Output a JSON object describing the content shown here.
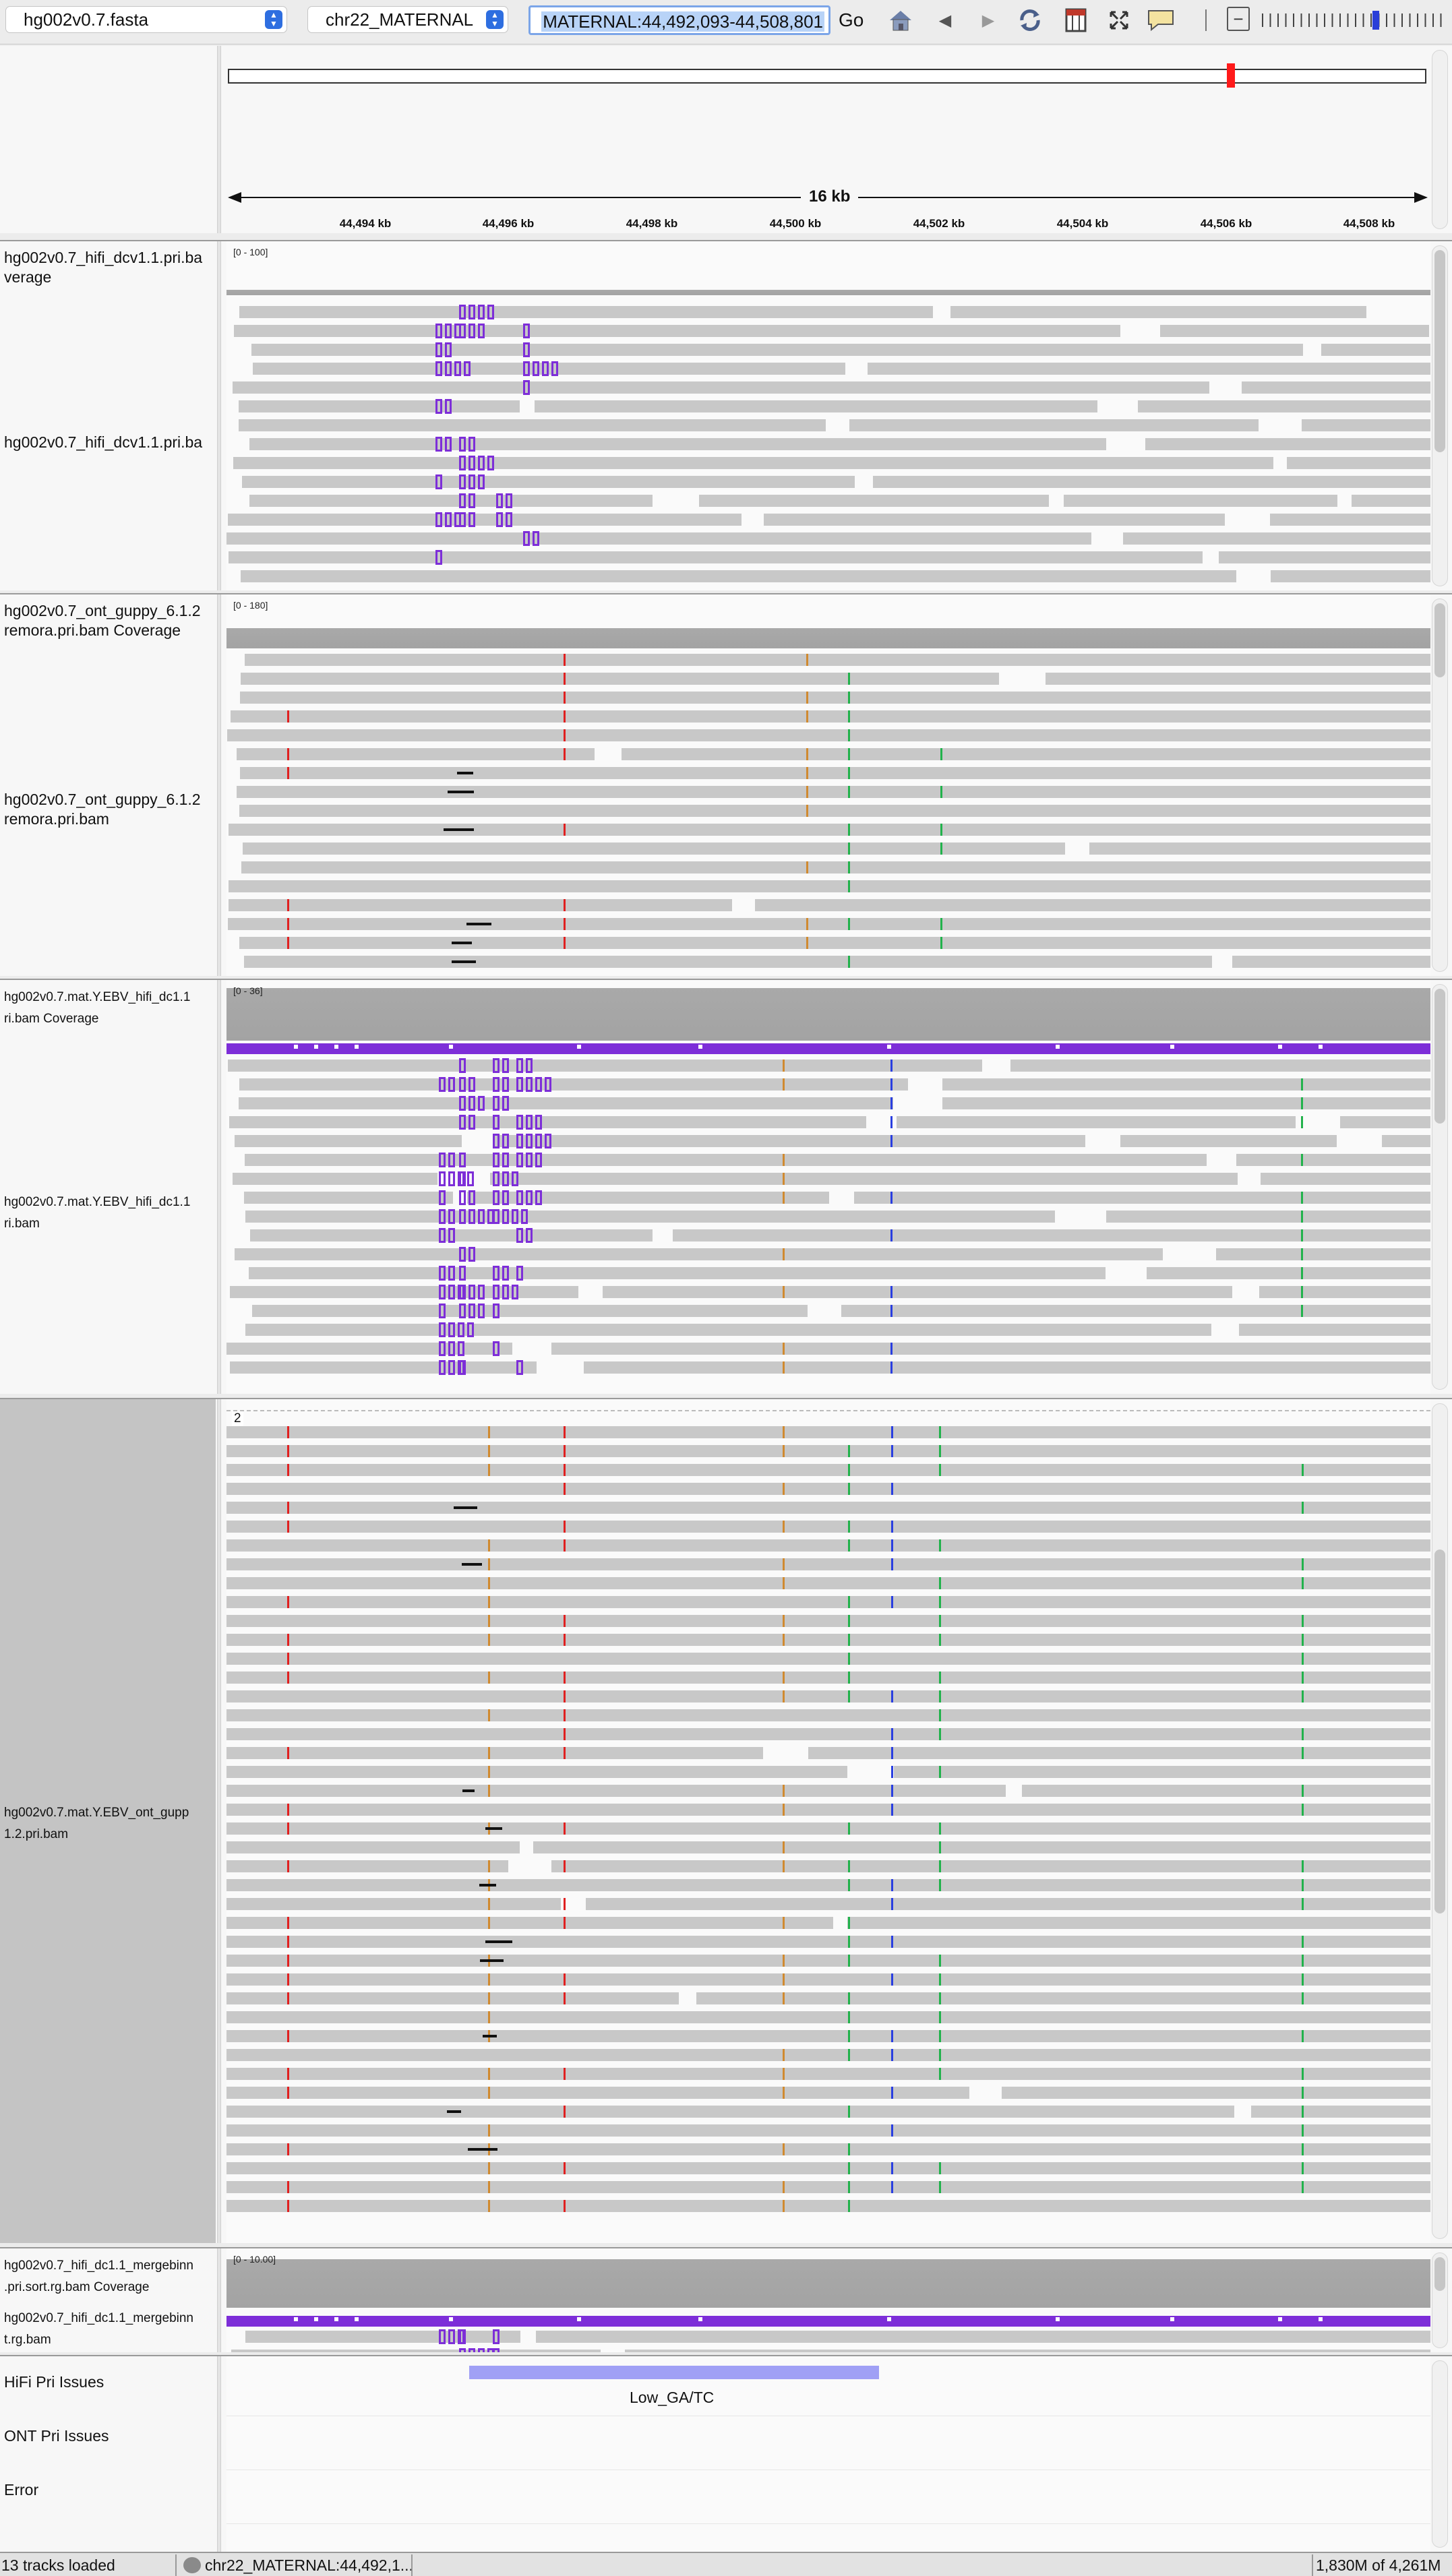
{
  "toolbar": {
    "genome": "hg002v0.7.fasta",
    "chromosome": "chr22_MATERNAL",
    "locus": "MATERNAL:44,492,093-44,508,801",
    "go_label": "Go",
    "icons": [
      "home-icon",
      "back-icon",
      "forward-icon",
      "refresh-icon",
      "region-of-interest-icon",
      "fit-window-icon",
      "popup-info-icon",
      "zoom-out-icon",
      "zoom-slider-icon"
    ]
  },
  "ruler": {
    "span_label": "16 kb",
    "tick_labels": [
      "44,494 kb",
      "44,496 kb",
      "44,498 kb",
      "44,500 kb",
      "44,502 kb",
      "44,504 kb",
      "44,506 kb",
      "44,508 kb"
    ]
  },
  "tracks": {
    "hifi_dcv": {
      "coverage_name": "hg002v0.7_hifi_dcv1.1.pri.ba\nverage",
      "bam_name": "hg002v0.7_hifi_dcv1.1.pri.ba",
      "range": "[0 - 100]"
    },
    "ont_guppy": {
      "coverage_name": "hg002v0.7_ont_guppy_6.1.2\nremora.pri.bam Coverage",
      "bam_name": "hg002v0.7_ont_guppy_6.1.2\nremora.pri.bam",
      "range": "[0 - 180]"
    },
    "mat_hifi": {
      "coverage_name": "hg002v0.7.mat.Y.EBV_hifi_dc1.1\nri.bam Coverage",
      "bam_name": "hg002v0.7.mat.Y.EBV_hifi_dc1.1\nri.bam",
      "range": "[0 - 36]"
    },
    "mat_ont": {
      "bam_name": "hg002v0.7.mat.Y.EBV_ont_gupp\n1.2.pri.bam",
      "downsample_label": "2"
    },
    "merge": {
      "coverage_name": "hg002v0.7_hifi_dc1.1_mergebinn\n.pri.sort.rg.bam Coverage",
      "bam_name": "hg002v0.7_hifi_dc1.1_mergebinn\nt.rg.bam",
      "range": "[0 - 10.00]"
    }
  },
  "features": {
    "hifi_issues_name": "HiFi Pri Issues",
    "ont_issues_name": "ONT Pri Issues",
    "error_name": "Error",
    "hifi_feature_label": "Low_GA/TC"
  },
  "status": {
    "tracks_loaded": "13 tracks loaded",
    "locus": "chr22_MATERNAL:44,492,1...",
    "memory": "1,830M of 4,261M"
  },
  "colors": {
    "insertion": "#7d2ed8",
    "read": "#c8c8c8",
    "coverage": "#a8a8a8",
    "mismatch_a": "#22b24c",
    "mismatch_c": "#2a3fe0",
    "mismatch_g": "#d08a30",
    "mismatch_t": "#e02020",
    "feature": "#a0a0f5",
    "ideogram_marker": "#ff1a1a"
  }
}
